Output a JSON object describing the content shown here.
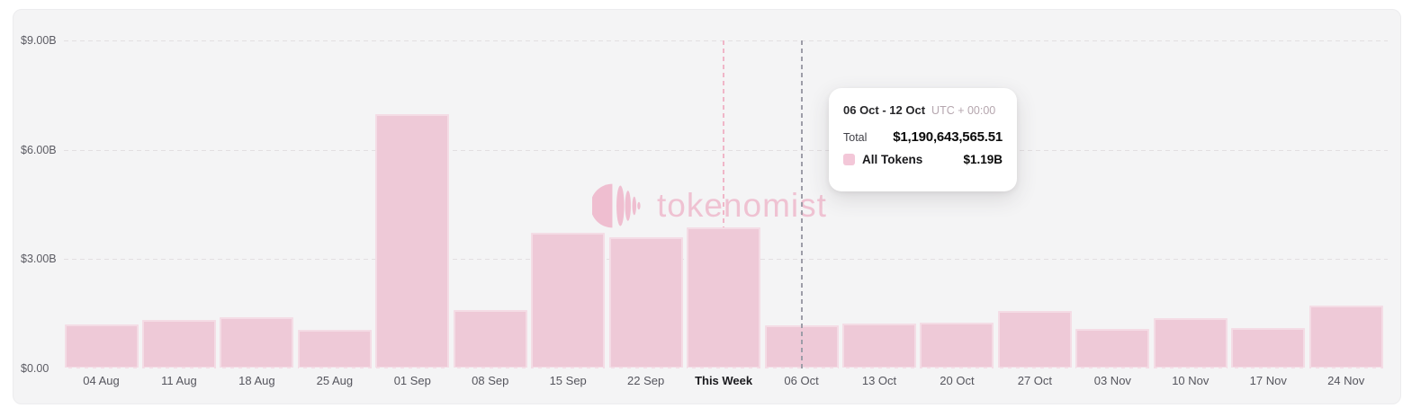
{
  "watermark": {
    "text": "tokenomist"
  },
  "colors": {
    "panel_bg": "#f4f4f5",
    "bar_fill": "#eec9d7",
    "gridline": "#e2dfe1",
    "current_week_line": "#f0b6c8",
    "hover_crosshair_line": "#9d9da8",
    "watermark_pink": "#efc2d2",
    "axis_text": "#55555d"
  },
  "tooltip": {
    "date_range": "06 Oct - 12 Oct",
    "timezone": "UTC + 00:00",
    "total_label": "Total",
    "total_value": "$1,190,643,565.51",
    "series_swatch_color": "#f3c7d8",
    "series_label": "All Tokens",
    "series_value": "$1.19B"
  },
  "chart_data": {
    "type": "bar",
    "title": "",
    "xlabel": "",
    "ylabel": "",
    "unit": "USD billions",
    "categories": [
      "04 Aug",
      "11 Aug",
      "18 Aug",
      "25 Aug",
      "01 Sep",
      "08 Sep",
      "15 Sep",
      "22 Sep",
      "This Week",
      "06 Oct",
      "13 Oct",
      "20 Oct",
      "27 Oct",
      "03 Nov",
      "10 Nov",
      "17 Nov",
      "24 Nov"
    ],
    "values": [
      1.21,
      1.33,
      1.41,
      1.07,
      6.99,
      1.61,
      3.72,
      3.61,
      3.87,
      1.19,
      1.23,
      1.26,
      1.59,
      1.09,
      1.39,
      1.12,
      1.72
    ],
    "ylim": [
      0,
      9
    ],
    "yticks": [
      {
        "label": "$0.00",
        "value": 0
      },
      {
        "label": "$3.00B",
        "value": 3
      },
      {
        "label": "$6.00B",
        "value": 6
      },
      {
        "label": "$9.00B",
        "value": 9
      }
    ],
    "grid": "horizontal-dashed",
    "legend": [
      "All Tokens"
    ],
    "legend_position": "tooltip-only",
    "current_category": "This Week",
    "hovered_category": "06 Oct",
    "hovered_value_exact": "$1,190,643,565.51",
    "markers": [
      {
        "category": "This Week",
        "style": "pink",
        "name": "current-week-line"
      },
      {
        "category": "06 Oct",
        "style": "gray",
        "name": "hover-crosshair-line"
      }
    ]
  }
}
